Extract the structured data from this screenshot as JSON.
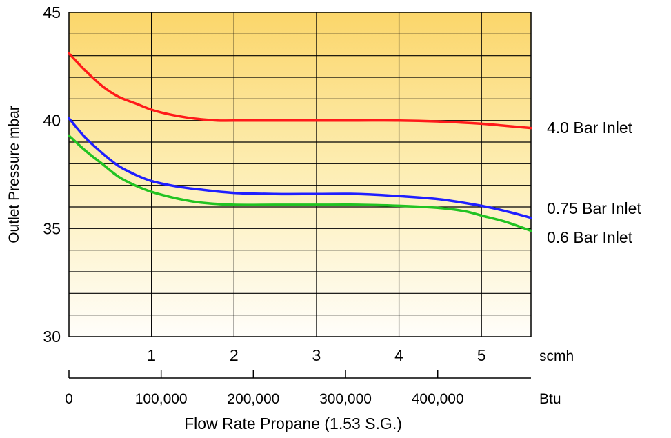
{
  "chart_data": {
    "type": "line",
    "title": "",
    "ylabel": "Outlet Pressure mbar",
    "xlabel": "Flow Rate Propane (1.53 S.G.)",
    "ylim": [
      30,
      45
    ],
    "y_ticks": [
      "30",
      "35",
      "40",
      "45"
    ],
    "xlim_scmh": [
      0,
      5.6
    ],
    "x_ticks_scmh": [
      "1",
      "2",
      "3",
      "4",
      "5"
    ],
    "x_unit_scmh": "scmh",
    "x_ticks_btu": [
      "0",
      "100,000",
      "200,000",
      "300,000",
      "400,000"
    ],
    "x_unit_btu": "Btu",
    "btu_per_scmh": 89500,
    "grid": true,
    "legend": "end-of-line labels on right",
    "series": [
      {
        "name": "4.0 Bar Inlet",
        "color": "#ff1a1a",
        "x": [
          0,
          0.2,
          0.4,
          0.6,
          0.8,
          1.0,
          1.2,
          1.5,
          1.8,
          2.0,
          2.5,
          3.0,
          3.5,
          4.0,
          4.5,
          5.0,
          5.3,
          5.6
        ],
        "y": [
          43.1,
          42.3,
          41.6,
          41.1,
          40.8,
          40.5,
          40.3,
          40.1,
          40.0,
          40.0,
          40.0,
          40.0,
          40.0,
          40.0,
          39.95,
          39.85,
          39.75,
          39.65
        ]
      },
      {
        "name": "0.75 Bar Inlet",
        "color": "#1f1fff",
        "x": [
          0,
          0.2,
          0.4,
          0.6,
          0.8,
          1.0,
          1.3,
          1.6,
          2.0,
          2.5,
          3.0,
          3.5,
          4.0,
          4.5,
          5.0,
          5.3,
          5.6
        ],
        "y": [
          40.1,
          39.2,
          38.5,
          37.9,
          37.5,
          37.2,
          36.95,
          36.8,
          36.65,
          36.6,
          36.6,
          36.6,
          36.5,
          36.35,
          36.05,
          35.8,
          35.5
        ]
      },
      {
        "name": "0.6 Bar Inlet",
        "color": "#22c322",
        "x": [
          0,
          0.2,
          0.4,
          0.6,
          0.8,
          1.0,
          1.3,
          1.6,
          2.0,
          2.5,
          3.0,
          3.5,
          4.0,
          4.5,
          4.8,
          5.0,
          5.3,
          5.6
        ],
        "y": [
          39.3,
          38.6,
          38.0,
          37.4,
          37.0,
          36.7,
          36.4,
          36.2,
          36.1,
          36.1,
          36.1,
          36.1,
          36.05,
          35.95,
          35.8,
          35.6,
          35.3,
          34.9
        ]
      }
    ]
  }
}
